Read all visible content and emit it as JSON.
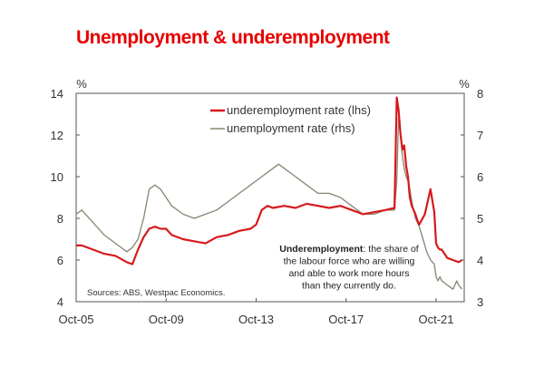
{
  "chart_data": {
    "type": "line",
    "title": "Unemployment & underemployment",
    "left_axis": {
      "unit": "%",
      "ylim": [
        4,
        14
      ],
      "ticks": [
        4,
        6,
        8,
        10,
        12,
        14
      ]
    },
    "right_axis": {
      "unit": "%",
      "ylim": [
        3,
        8
      ],
      "ticks": [
        3,
        4,
        5,
        6,
        7,
        8
      ]
    },
    "x_axis": {
      "ticks": [
        "Oct-05",
        "Oct-09",
        "Oct-13",
        "Oct-17",
        "Oct-21"
      ],
      "tick_years": [
        2005.75,
        2009.75,
        2013.75,
        2017.75,
        2021.75
      ],
      "xlim": [
        2005.75,
        2023.0
      ]
    },
    "grid": false,
    "legend_position": "top-center",
    "series": [
      {
        "name": "underemployment rate (lhs)",
        "axis": "left",
        "color": "#d7191c",
        "x": [
          2005.75,
          2006.0,
          2006.5,
          2007.0,
          2007.5,
          2008.0,
          2008.25,
          2008.5,
          2008.75,
          2009.0,
          2009.25,
          2009.5,
          2009.75,
          2010.0,
          2010.5,
          2011.0,
          2011.5,
          2012.0,
          2012.5,
          2013.0,
          2013.5,
          2013.75,
          2014.0,
          2014.25,
          2014.5,
          2015.0,
          2015.5,
          2016.0,
          2016.5,
          2017.0,
          2017.5,
          2018.0,
          2018.5,
          2019.0,
          2019.5,
          2019.9,
          2020.0,
          2020.08,
          2020.17,
          2020.25,
          2020.33,
          2020.42,
          2020.5,
          2020.58,
          2020.67,
          2020.75,
          2020.83,
          2020.92,
          2021.0,
          2021.25,
          2021.5,
          2021.67,
          2021.75,
          2021.83,
          2021.92,
          2022.0,
          2022.25,
          2022.5,
          2022.75,
          2022.9
        ],
        "values": [
          6.7,
          6.7,
          6.5,
          6.3,
          6.2,
          5.9,
          5.8,
          6.5,
          7.1,
          7.5,
          7.6,
          7.5,
          7.5,
          7.2,
          7.0,
          6.9,
          6.8,
          7.1,
          7.2,
          7.4,
          7.5,
          7.7,
          8.4,
          8.6,
          8.5,
          8.6,
          8.5,
          8.7,
          8.6,
          8.5,
          8.6,
          8.4,
          8.2,
          8.3,
          8.4,
          8.5,
          13.8,
          13.2,
          12.0,
          11.3,
          11.5,
          10.5,
          10.0,
          9.0,
          8.6,
          8.4,
          8.2,
          7.9,
          7.7,
          8.2,
          9.4,
          8.3,
          6.8,
          6.6,
          6.5,
          6.5,
          6.1,
          6.0,
          5.9,
          6.0
        ]
      },
      {
        "name": "unemployment rate (rhs)",
        "axis": "right",
        "color": "#8a8470",
        "x": [
          2005.75,
          2006.0,
          2006.5,
          2007.0,
          2007.5,
          2008.0,
          2008.25,
          2008.5,
          2008.75,
          2009.0,
          2009.25,
          2009.5,
          2009.75,
          2010.0,
          2010.5,
          2011.0,
          2011.5,
          2012.0,
          2012.5,
          2013.0,
          2013.5,
          2014.0,
          2014.5,
          2014.75,
          2015.0,
          2015.5,
          2016.0,
          2016.5,
          2017.0,
          2017.5,
          2018.0,
          2018.5,
          2019.0,
          2019.5,
          2019.9,
          2020.0,
          2020.08,
          2020.17,
          2020.25,
          2020.33,
          2020.42,
          2020.5,
          2020.58,
          2020.67,
          2020.75,
          2020.83,
          2020.92,
          2021.0,
          2021.17,
          2021.33,
          2021.5,
          2021.67,
          2021.75,
          2021.83,
          2021.92,
          2022.0,
          2022.25,
          2022.5,
          2022.67,
          2022.75,
          2022.9
        ],
        "values": [
          5.1,
          5.2,
          4.9,
          4.6,
          4.4,
          4.2,
          4.3,
          4.5,
          5.0,
          5.7,
          5.8,
          5.7,
          5.5,
          5.3,
          5.1,
          5.0,
          5.1,
          5.2,
          5.4,
          5.6,
          5.8,
          6.0,
          6.2,
          6.3,
          6.2,
          6.0,
          5.8,
          5.6,
          5.6,
          5.5,
          5.3,
          5.1,
          5.1,
          5.2,
          5.2,
          5.9,
          7.4,
          7.0,
          6.5,
          6.2,
          6.0,
          5.9,
          5.7,
          5.4,
          5.2,
          5.0,
          4.9,
          4.8,
          4.5,
          4.2,
          4.0,
          3.9,
          3.6,
          3.5,
          3.6,
          3.5,
          3.4,
          3.3,
          3.5,
          3.4,
          3.3
        ]
      }
    ],
    "annotations": [
      {
        "lines": [
          {
            "bold": "Underemployment",
            "rest": ": the share of"
          },
          {
            "bold": "",
            "rest": "the labour force who are willing"
          },
          {
            "bold": "",
            "rest": "and able to work more hours"
          },
          {
            "bold": "",
            "rest": "than they currently do."
          }
        ]
      }
    ],
    "source": "Sources: ABS, Westpac Economics."
  }
}
